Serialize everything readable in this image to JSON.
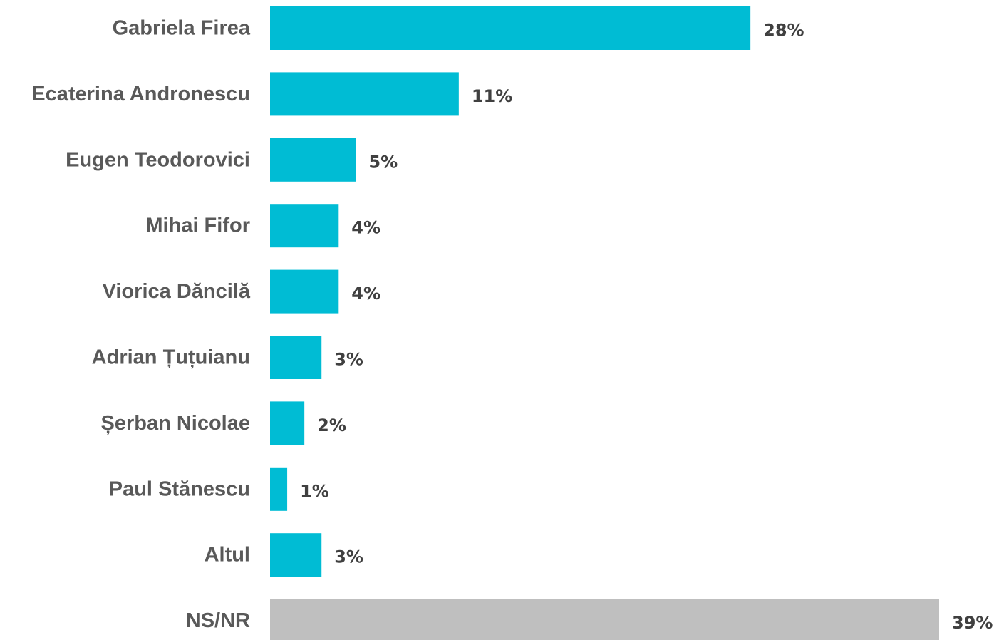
{
  "chart_data": {
    "type": "bar",
    "orientation": "horizontal",
    "categories": [
      "Gabriela Firea",
      "Ecaterina Andronescu",
      "Eugen Teodorovici",
      "Mihai Fifor",
      "Viorica Dăncilă",
      "Adrian Țuțuianu",
      "Șerban Nicolae",
      "Paul Stănescu",
      "Altul",
      "NS/NR"
    ],
    "values": [
      28,
      11,
      5,
      4,
      4,
      3,
      2,
      1,
      3,
      39
    ],
    "value_labels": [
      "28%",
      "11%",
      "5%",
      "4%",
      "4%",
      "3%",
      "2%",
      "1%",
      "3%",
      "39%"
    ],
    "unit": "%",
    "xlim": [
      0,
      39
    ],
    "grid": false,
    "legend": "none",
    "colors": {
      "default_bar": "#00BCD4",
      "highlight_bar": "#BFBFBF",
      "category_text": "#595959",
      "value_text": "#404040"
    },
    "bar_colors": [
      "default_bar",
      "default_bar",
      "default_bar",
      "default_bar",
      "default_bar",
      "default_bar",
      "default_bar",
      "default_bar",
      "default_bar",
      "highlight_bar"
    ]
  }
}
